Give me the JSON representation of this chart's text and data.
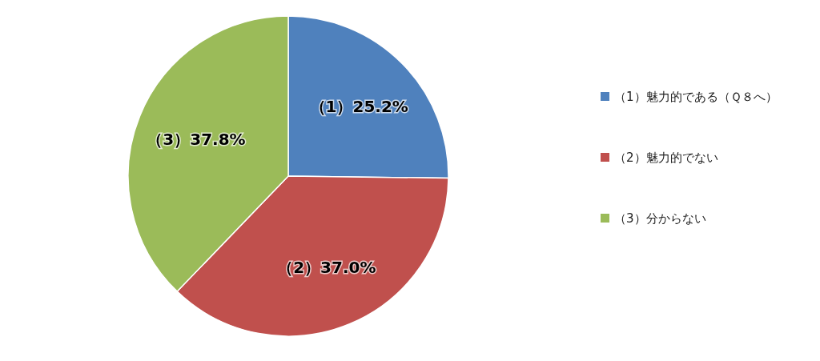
{
  "chart_data": {
    "type": "pie",
    "categories": [
      "（1）魅力的である（Ｑ８へ）",
      "（2）魅力的でない",
      "（3）分からない"
    ],
    "values": [
      25.2,
      37.0,
      37.8
    ],
    "colors": [
      "#4f81bd",
      "#c0504d",
      "#9bbb59"
    ],
    "value_labels": [
      "（1）25.2%",
      "（2）37.0%",
      "（3）37.8%"
    ],
    "legend": "right"
  }
}
